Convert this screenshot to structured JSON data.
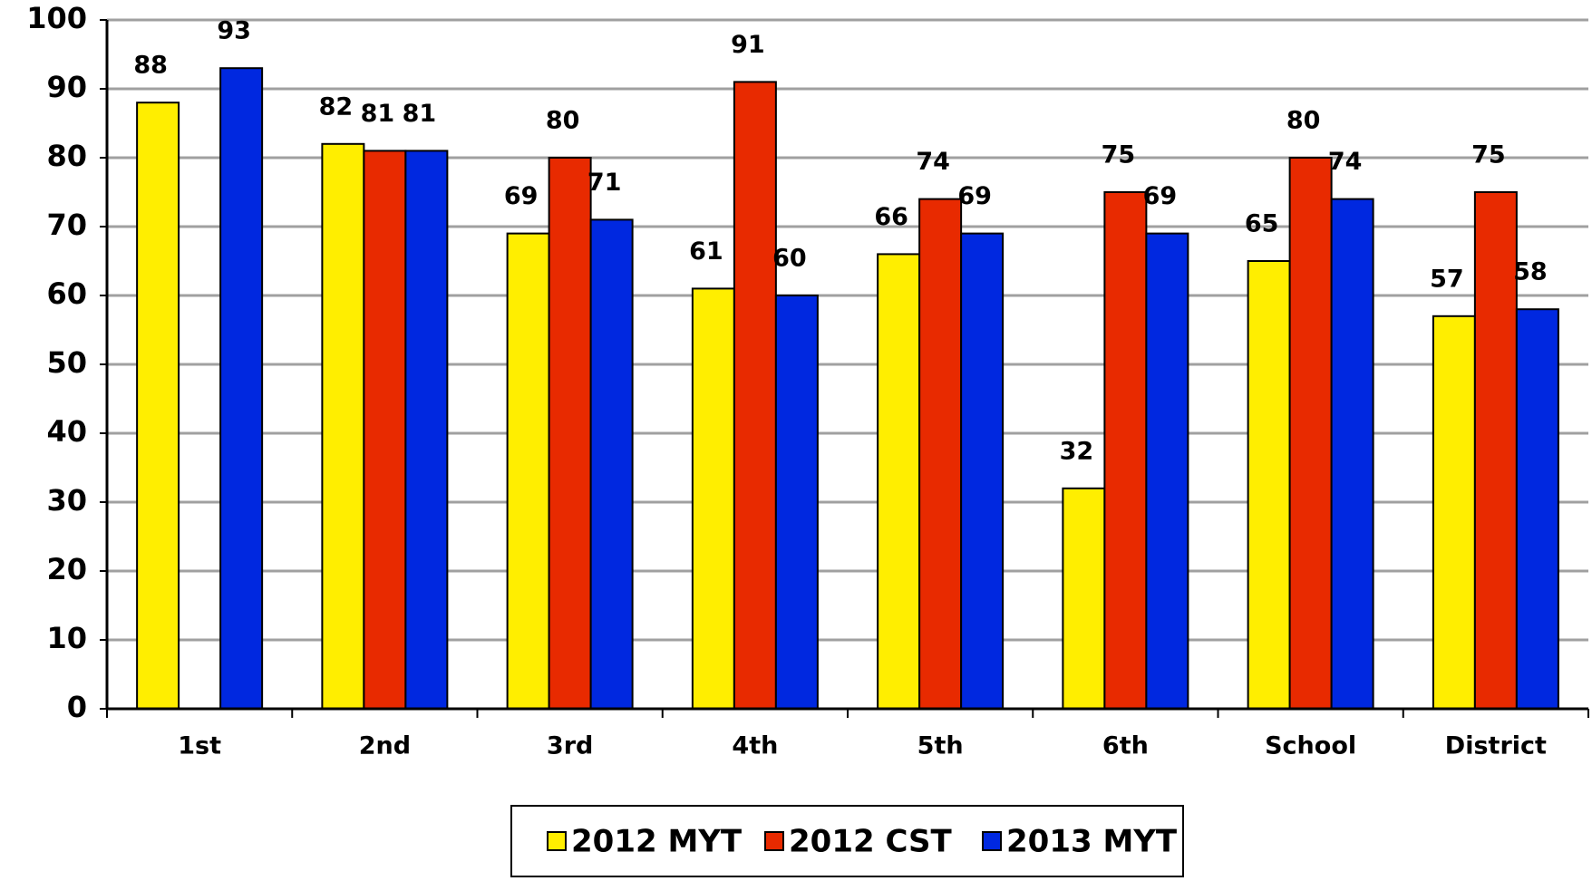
{
  "chart_data": {
    "type": "bar",
    "categories": [
      "1st",
      "2nd",
      "3rd",
      "4th",
      "5th",
      "6th",
      "School",
      "District"
    ],
    "series": [
      {
        "name": "2012 MYT",
        "color": "#ffee00",
        "values": [
          88,
          82,
          69,
          61,
          66,
          32,
          65,
          57
        ]
      },
      {
        "name": "2012 CST",
        "color": "#e82a00",
        "values": [
          null,
          81,
          80,
          91,
          74,
          75,
          80,
          75
        ]
      },
      {
        "name": "2013 MYT",
        "color": "#0028e0",
        "values": [
          93,
          81,
          71,
          60,
          69,
          69,
          74,
          58
        ]
      }
    ],
    "ylim": [
      0,
      100
    ],
    "yticks": [
      0,
      10,
      20,
      30,
      40,
      50,
      60,
      70,
      80,
      90,
      100
    ],
    "grid": true,
    "legend": "bottom"
  }
}
